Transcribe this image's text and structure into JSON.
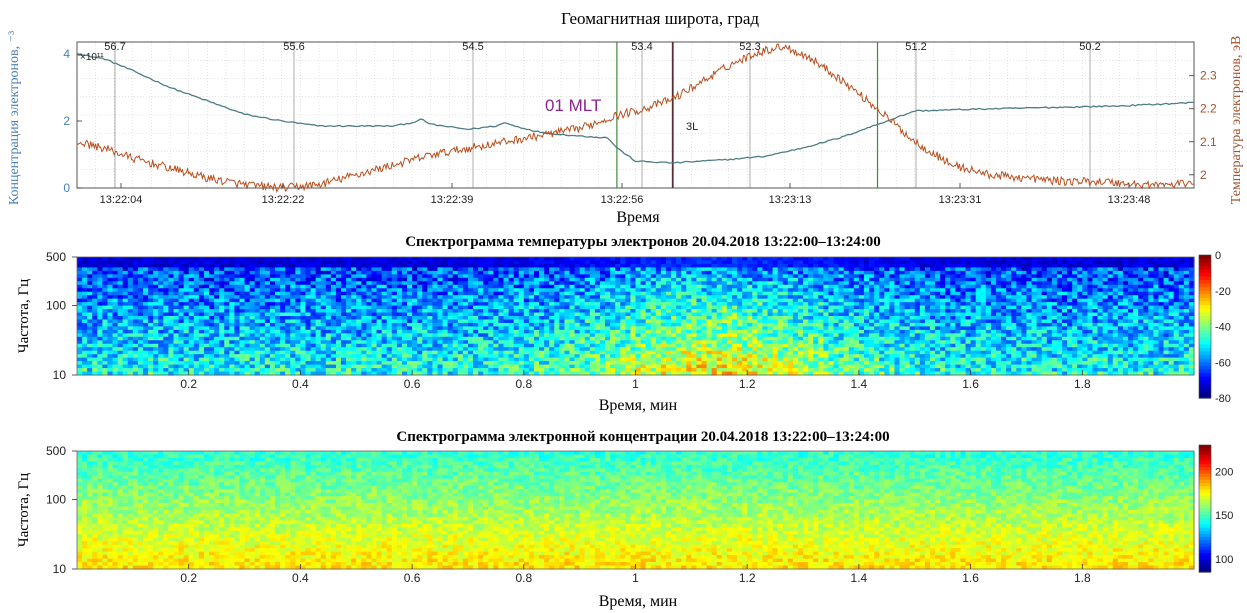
{
  "colors": {
    "density_line": "#4e7d86",
    "temperature_line": "#b8501f",
    "left_axis_text": "#4a7fb4",
    "right_axis_text": "#a0522d",
    "annotation_text": "#8b2391",
    "marker_green": "#3f8a3f",
    "marker_dark": "#5a2e2e"
  },
  "chart_data": [
    {
      "type": "line",
      "top_axis_label": "Геомагнитная широта, град",
      "top_ticks": [
        "56.7",
        "55.6",
        "54.5",
        "53.4",
        "52.3",
        "51.2",
        "50.2"
      ],
      "xlabel": "Время",
      "x_ticks": [
        "13:22:04",
        "13:22:22",
        "13:22:39",
        "13:22:56",
        "13:23:13",
        "13:23:31",
        "13:23:48"
      ],
      "ylabel_left": "Концентрация электронов, ⁻³",
      "y_left_ticks": [
        "0",
        "2",
        "4"
      ],
      "y_left_multiplier": "×10¹¹",
      "ylim_left": [
        0,
        4
      ],
      "ylabel_right": "Температура электронов, эВ",
      "y_right_ticks": [
        "2",
        "2.1",
        "2.2",
        "2.3"
      ],
      "ylim_right": [
        1.96,
        2.39
      ],
      "xlim_seconds": [
        0,
        120
      ],
      "annotations": {
        "mlt": "01 MLT",
        "marker": "3L"
      },
      "marker_lines_seconds": [
        {
          "t": 58,
          "style": "green"
        },
        {
          "t": 64,
          "style": "dark"
        },
        {
          "t": 86,
          "style": "green"
        }
      ],
      "series": [
        {
          "role": "density",
          "axis": "left",
          "t": [
            0,
            3,
            6,
            10,
            14,
            18,
            22,
            26,
            30,
            34,
            36,
            37,
            38,
            42,
            45,
            46,
            47,
            50,
            54,
            57,
            58,
            60,
            64,
            67,
            70,
            74,
            78,
            82,
            86,
            90,
            96,
            104,
            112,
            120
          ],
          "values": [
            4.0,
            3.85,
            3.5,
            3.0,
            2.6,
            2.2,
            2.0,
            1.85,
            1.85,
            1.85,
            1.95,
            2.05,
            1.9,
            1.75,
            1.85,
            1.95,
            1.85,
            1.65,
            1.55,
            1.5,
            1.2,
            0.8,
            0.75,
            0.8,
            0.85,
            0.95,
            1.2,
            1.5,
            1.9,
            2.3,
            2.35,
            2.4,
            2.45,
            2.55
          ]
        },
        {
          "role": "temperature",
          "axis": "right",
          "t": [
            0,
            3,
            6,
            10,
            14,
            18,
            22,
            26,
            30,
            34,
            38,
            42,
            46,
            50,
            54,
            58,
            61,
            64,
            67,
            70,
            73,
            76,
            79,
            82,
            86,
            90,
            94,
            98,
            102,
            106,
            110,
            114,
            118,
            120
          ],
          "values": [
            2.1,
            2.08,
            2.05,
            2.02,
            1.99,
            1.97,
            1.96,
            1.97,
            2.0,
            2.03,
            2.06,
            2.08,
            2.1,
            2.12,
            2.14,
            2.18,
            2.2,
            2.23,
            2.28,
            2.33,
            2.37,
            2.39,
            2.35,
            2.29,
            2.2,
            2.1,
            2.03,
            2.0,
            1.99,
            1.98,
            1.98,
            1.97,
            1.97,
            1.98
          ]
        }
      ]
    },
    {
      "type": "heatmap",
      "title": "Спектрограмма температуры электронов  20.04.2018  13:22:00–13:24:00",
      "xlabel": "Время, мин",
      "ylabel": "Частота, Гц",
      "x_ticks": [
        "0.2",
        "0.4",
        "0.6",
        "0.8",
        "1",
        "1.2",
        "1.4",
        "1.6",
        "1.8"
      ],
      "y_ticks": [
        "500",
        "100",
        "10"
      ],
      "colorbar_ticks": [
        "0",
        "-20",
        "-40",
        "-60",
        "-80"
      ],
      "clim": [
        -80,
        0
      ],
      "xlim": [
        0,
        2
      ],
      "y_scale": "log"
    },
    {
      "type": "heatmap",
      "title": "Спектрограмма электронной концентрации  20.04.2018  13:22:00–13:24:00",
      "xlabel": "Время, мин",
      "ylabel": "Частота, Гц",
      "x_ticks": [
        "0.2",
        "0.4",
        "0.6",
        "0.8",
        "1",
        "1.2",
        "1.4",
        "1.6",
        "1.8"
      ],
      "y_ticks": [
        "500",
        "100",
        "10"
      ],
      "colorbar_ticks": [
        "200",
        "150",
        "100"
      ],
      "clim": [
        85,
        230
      ],
      "xlim": [
        0,
        2
      ],
      "y_scale": "log"
    }
  ]
}
